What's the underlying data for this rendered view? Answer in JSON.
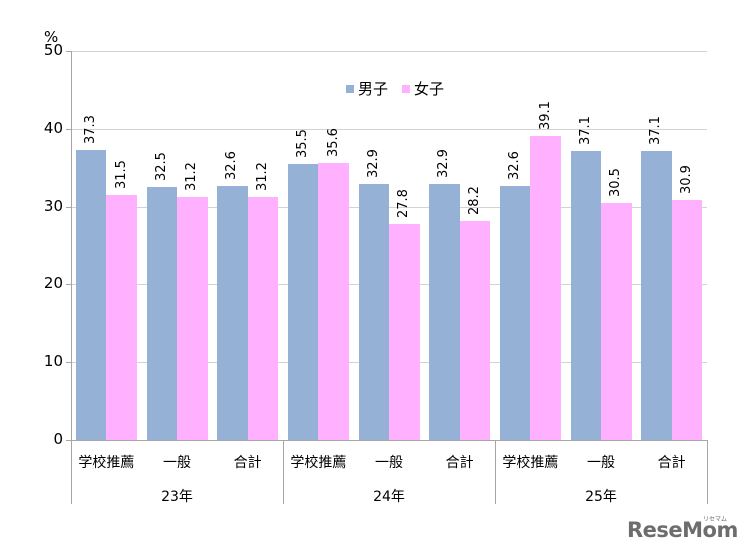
{
  "chart_data": {
    "type": "bar",
    "title": "",
    "ylabel": "%",
    "xlabel": "",
    "ylim": [
      0,
      50
    ],
    "yticks": [
      0,
      10,
      20,
      30,
      40,
      50
    ],
    "grid": true,
    "legend_position": "top-center-inside",
    "groups": [
      {
        "label": "23年",
        "categories": [
          "学校推薦",
          "一般",
          "合計"
        ]
      },
      {
        "label": "24年",
        "categories": [
          "学校推薦",
          "一般",
          "合計"
        ]
      },
      {
        "label": "25年",
        "categories": [
          "学校推薦",
          "一般",
          "合計"
        ]
      }
    ],
    "categories": [
      "23年 学校推薦",
      "23年 一般",
      "23年 合計",
      "24年 学校推薦",
      "24年 一般",
      "24年 合計",
      "25年 学校推薦",
      "25年 一般",
      "25年 合計"
    ],
    "series": [
      {
        "name": "男子",
        "color": "#95b1d5",
        "values": [
          37.3,
          32.5,
          32.6,
          35.5,
          32.9,
          32.9,
          32.6,
          37.1,
          37.1
        ]
      },
      {
        "name": "女子",
        "color": "#ffb0ff",
        "values": [
          31.5,
          31.2,
          31.2,
          35.6,
          27.8,
          28.2,
          39.1,
          30.5,
          30.9
        ]
      }
    ]
  },
  "legend": {
    "items": [
      {
        "label": "男子",
        "color": "#95b1d5"
      },
      {
        "label": "女子",
        "color": "#ffb0ff"
      }
    ]
  },
  "watermark": {
    "text": "ReseMom",
    "ruby": "リセマム"
  }
}
